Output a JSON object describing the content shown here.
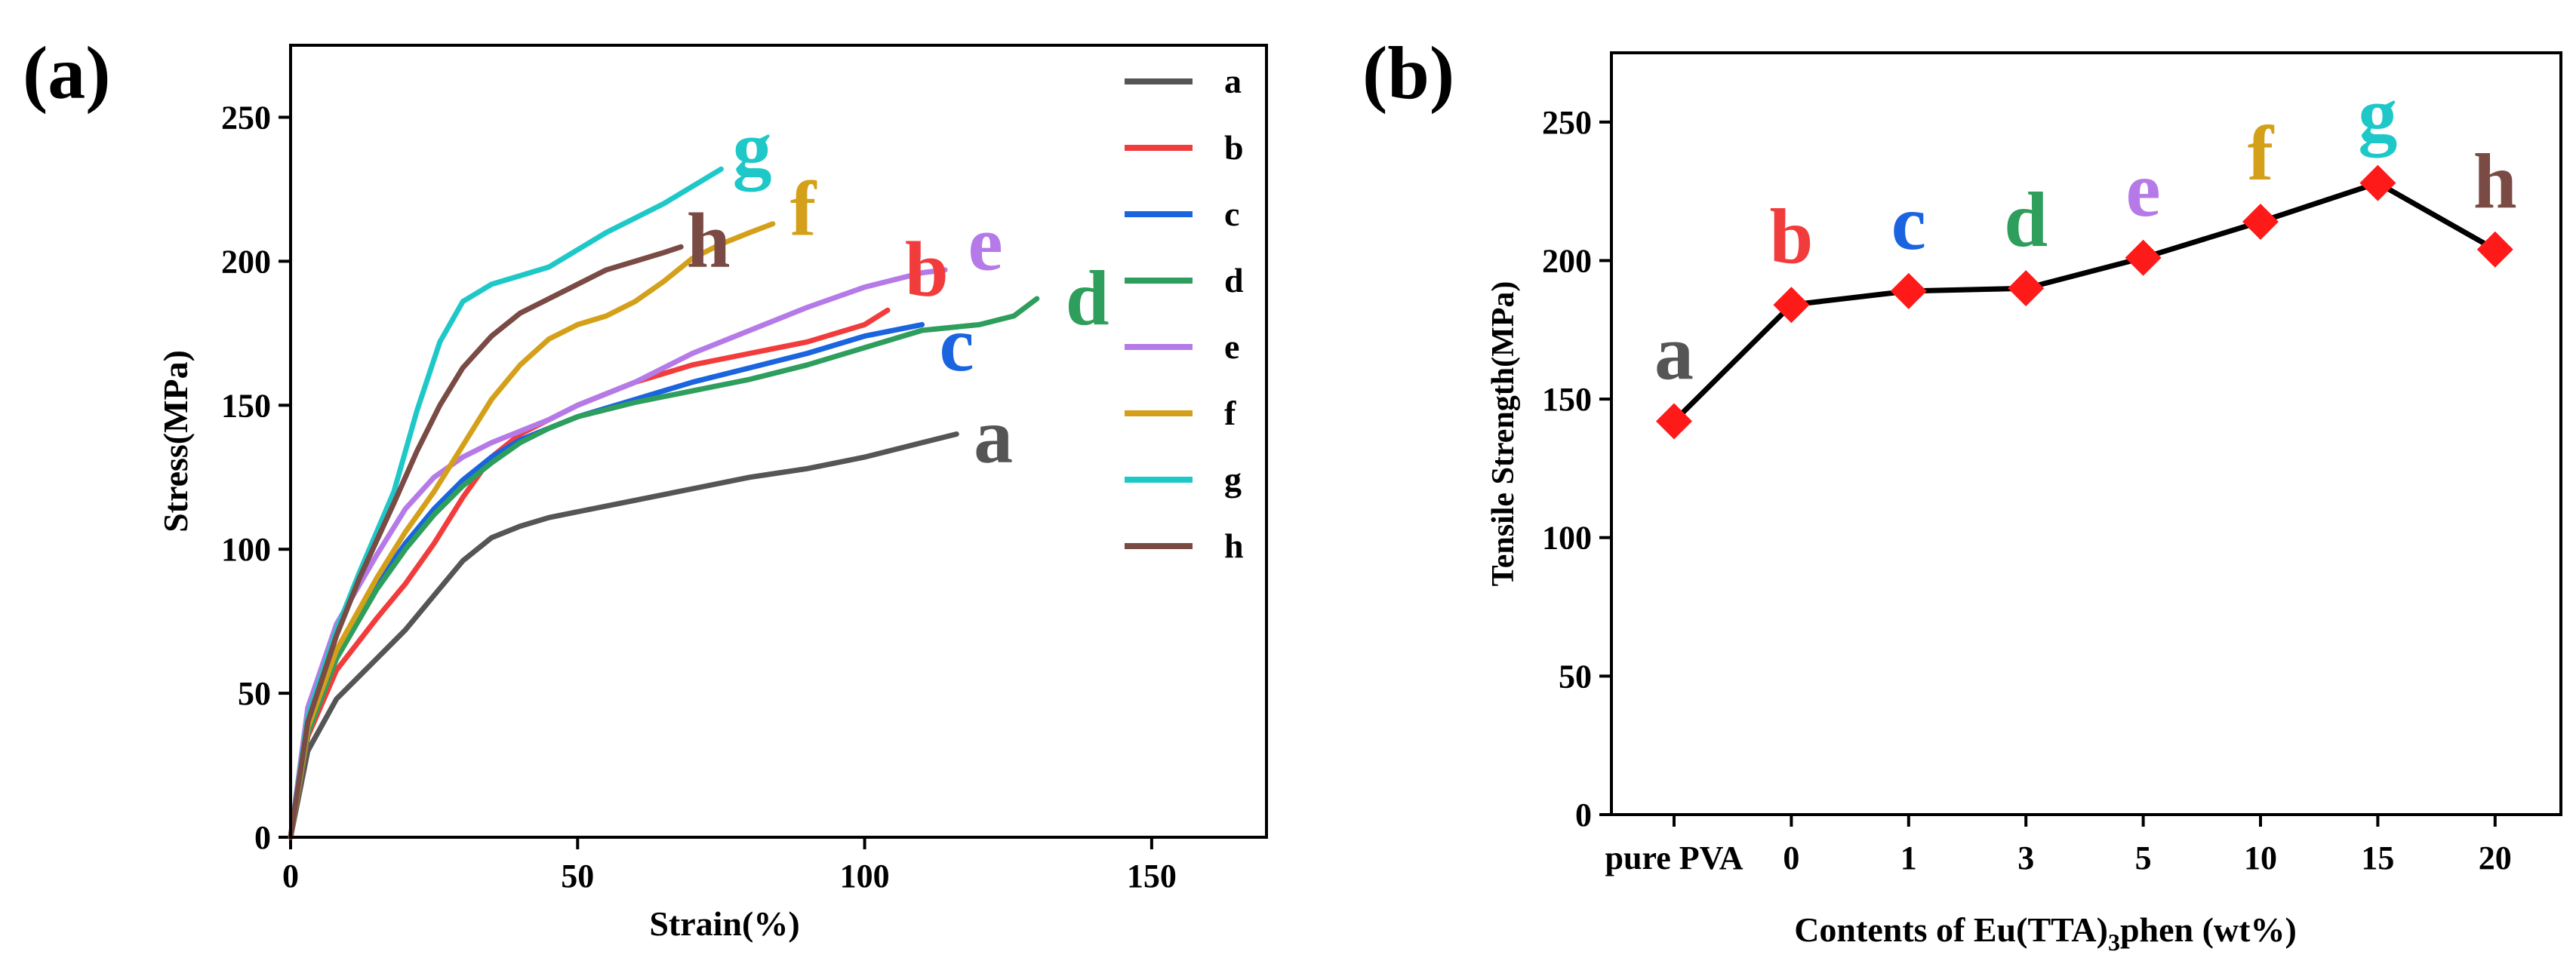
{
  "chart_data": [
    {
      "panel": "(a)",
      "type": "line",
      "title": "",
      "xlabel": "Strain(%)",
      "ylabel": "Stress(MPa)",
      "xlim": [
        0,
        170
      ],
      "ylim": [
        0,
        275
      ],
      "xticks": [
        0,
        50,
        100,
        150
      ],
      "yticks": [
        0,
        50,
        100,
        150,
        200,
        250
      ],
      "legend_position": "top-right",
      "series": [
        {
          "name": "a",
          "color": "#555555",
          "x": [
            0,
            3,
            8,
            15,
            20,
            25,
            30,
            35,
            40,
            45,
            50,
            60,
            70,
            80,
            90,
            100,
            110,
            116
          ],
          "y": [
            0,
            30,
            48,
            62,
            72,
            84,
            96,
            104,
            108,
            111,
            113,
            117,
            121,
            125,
            128,
            132,
            137,
            140
          ]
        },
        {
          "name": "b",
          "color": "#f23c3c",
          "x": [
            0,
            3,
            8,
            15,
            20,
            25,
            30,
            35,
            40,
            45,
            50,
            60,
            70,
            80,
            90,
            100,
            104
          ],
          "y": [
            0,
            35,
            58,
            76,
            88,
            102,
            118,
            132,
            140,
            145,
            150,
            158,
            164,
            168,
            172,
            178,
            183
          ]
        },
        {
          "name": "c",
          "color": "#1a64e0",
          "x": [
            0,
            3,
            8,
            15,
            20,
            25,
            30,
            35,
            40,
            45,
            50,
            60,
            70,
            80,
            90,
            100,
            110
          ],
          "y": [
            0,
            38,
            65,
            88,
            102,
            114,
            124,
            132,
            138,
            142,
            146,
            152,
            158,
            163,
            168,
            174,
            178
          ]
        },
        {
          "name": "d",
          "color": "#2e9e5c",
          "x": [
            0,
            3,
            8,
            15,
            20,
            25,
            30,
            35,
            40,
            45,
            50,
            60,
            70,
            80,
            90,
            100,
            110,
            120,
            126,
            130
          ],
          "y": [
            0,
            36,
            62,
            86,
            100,
            112,
            122,
            130,
            137,
            142,
            146,
            151,
            155,
            159,
            164,
            170,
            176,
            178,
            181,
            187
          ]
        },
        {
          "name": "e",
          "color": "#b57ae8",
          "x": [
            0,
            3,
            8,
            15,
            20,
            25,
            30,
            35,
            40,
            45,
            50,
            60,
            70,
            80,
            90,
            100,
            110,
            114
          ],
          "y": [
            0,
            45,
            74,
            98,
            114,
            125,
            132,
            137,
            141,
            145,
            150,
            158,
            168,
            176,
            184,
            191,
            196,
            197
          ]
        },
        {
          "name": "f",
          "color": "#d4a01a",
          "x": [
            0,
            3,
            8,
            15,
            20,
            25,
            30,
            35,
            40,
            45,
            50,
            55,
            60,
            65,
            70,
            75,
            80,
            84
          ],
          "y": [
            0,
            38,
            65,
            90,
            106,
            120,
            136,
            152,
            164,
            173,
            178,
            181,
            186,
            193,
            201,
            206,
            210,
            213
          ]
        },
        {
          "name": "g",
          "color": "#1fc8c8",
          "x": [
            0,
            3,
            8,
            12,
            18,
            22,
            26,
            30,
            35,
            40,
            45,
            50,
            55,
            60,
            65,
            70,
            75
          ],
          "y": [
            0,
            42,
            72,
            92,
            120,
            148,
            172,
            186,
            192,
            195,
            198,
            204,
            210,
            215,
            220,
            226,
            232
          ]
        },
        {
          "name": "h",
          "color": "#7a4a44",
          "x": [
            0,
            3,
            8,
            12,
            18,
            22,
            26,
            30,
            35,
            40,
            45,
            50,
            55,
            60,
            65,
            68
          ],
          "y": [
            0,
            40,
            70,
            90,
            116,
            134,
            150,
            163,
            174,
            182,
            187,
            192,
            197,
            200,
            203,
            205
          ]
        }
      ],
      "curve_labels": [
        {
          "text": "a",
          "x": 119,
          "y": 138,
          "color": "#555555"
        },
        {
          "text": "b",
          "x": 107,
          "y": 196,
          "color": "#f23c3c"
        },
        {
          "text": "c",
          "x": 113,
          "y": 170,
          "color": "#1a64e0"
        },
        {
          "text": "d",
          "x": 135,
          "y": 186,
          "color": "#2e9e5c"
        },
        {
          "text": "e",
          "x": 118,
          "y": 205,
          "color": "#b57ae8"
        },
        {
          "text": "f",
          "x": 87,
          "y": 217,
          "color": "#d4a01a"
        },
        {
          "text": "g",
          "x": 77,
          "y": 238,
          "color": "#1fc8c8"
        },
        {
          "text": "h",
          "x": 69,
          "y": 206,
          "color": "#7a4a44"
        }
      ]
    },
    {
      "panel": "(b)",
      "type": "line",
      "marker": "diamond",
      "title": "",
      "xlabel": "Contents of Eu(TTA)",
      "xlabel_sub": "3",
      "xlabel_tail": "phen (wt%)",
      "ylabel": "Tensile Strength(MPa)",
      "ylim": [
        0,
        275
      ],
      "yticks": [
        0,
        50,
        100,
        150,
        200,
        250
      ],
      "categories": [
        "pure PVA",
        "0",
        "1",
        "3",
        "5",
        "10",
        "15",
        "20"
      ],
      "values": [
        142,
        184,
        189,
        190,
        201,
        214,
        228,
        204
      ],
      "line_color": "#000000",
      "marker_color": "#ff1a1a",
      "point_labels": [
        {
          "text": "a",
          "color": "#555555"
        },
        {
          "text": "b",
          "color": "#f23c3c"
        },
        {
          "text": "c",
          "color": "#1a64e0"
        },
        {
          "text": "d",
          "color": "#2e9e5c"
        },
        {
          "text": "e",
          "color": "#b57ae8"
        },
        {
          "text": "f",
          "color": "#d4a01a"
        },
        {
          "text": "g",
          "color": "#1fc8c8"
        },
        {
          "text": "h",
          "color": "#7a4a44"
        }
      ]
    }
  ]
}
